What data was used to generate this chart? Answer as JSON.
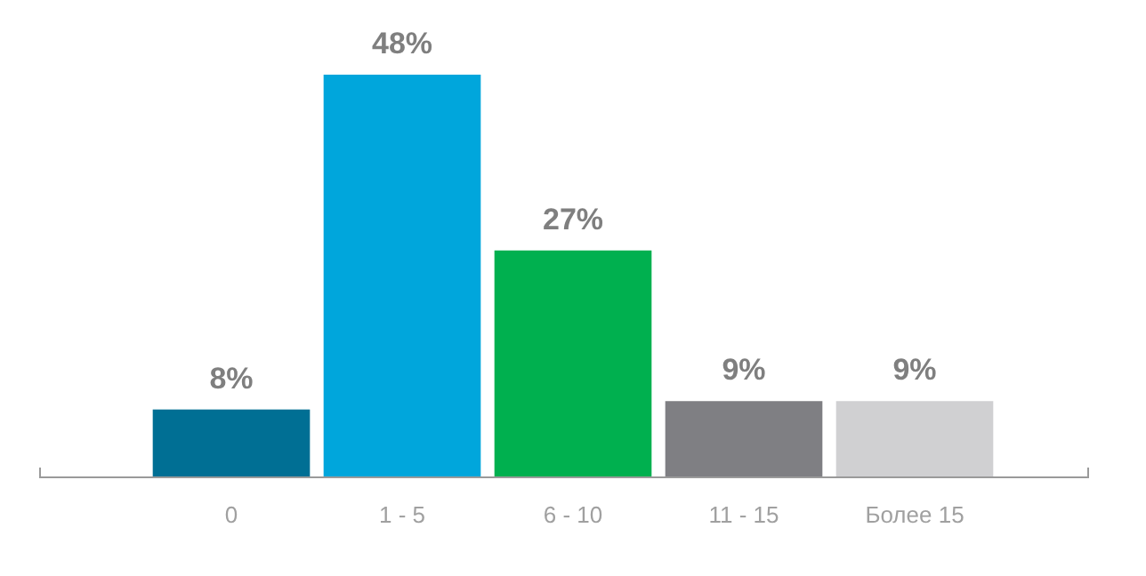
{
  "chart_data": {
    "type": "bar",
    "categories": [
      "0",
      "1 - 5",
      "6 - 10",
      "11 - 15",
      "Более 15"
    ],
    "values": [
      8,
      48,
      27,
      9,
      9
    ],
    "colors": [
      "#006f94",
      "#00a6dc",
      "#00b04f",
      "#7f7f83",
      "#d0d0d2"
    ],
    "value_labels": [
      "8%",
      "48%",
      "27%",
      "9%",
      "9%"
    ],
    "ylim": [
      0,
      48
    ]
  }
}
